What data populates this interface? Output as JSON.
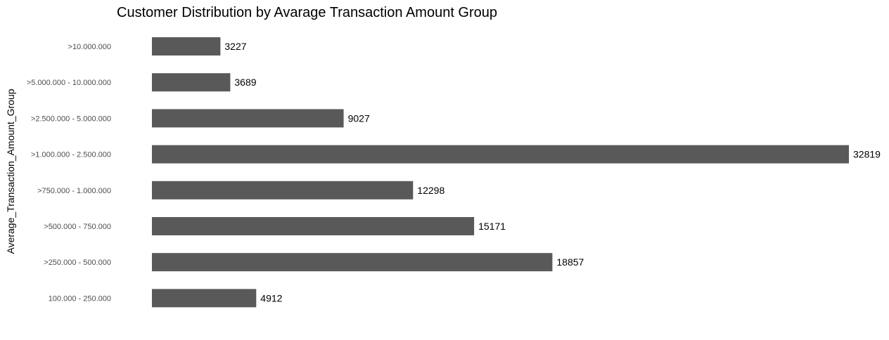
{
  "chart_data": {
    "type": "bar",
    "orientation": "horizontal",
    "title": "Customer Distribution by Avarage Transaction Amount Group",
    "xlabel": "",
    "ylabel": "Average_Transaction_Amount_Group",
    "categories": [
      ">10.000.000",
      ">5.000.000 - 10.000.000",
      ">2.500.000 - 5.000.000",
      ">1.000.000 - 2.500.000",
      ">750.000 - 1.000.000",
      ">500.000 - 750.000",
      ">250.000 - 500.000",
      "100.000 - 250.000"
    ],
    "values": [
      3227,
      3689,
      9027,
      32819,
      12298,
      15171,
      18857,
      4912
    ],
    "xlim": [
      0,
      32819
    ],
    "grid": false,
    "data_labels": true,
    "colors": {
      "bar": "#595959",
      "text": "#000000",
      "tick": "#4d4d4d"
    }
  }
}
